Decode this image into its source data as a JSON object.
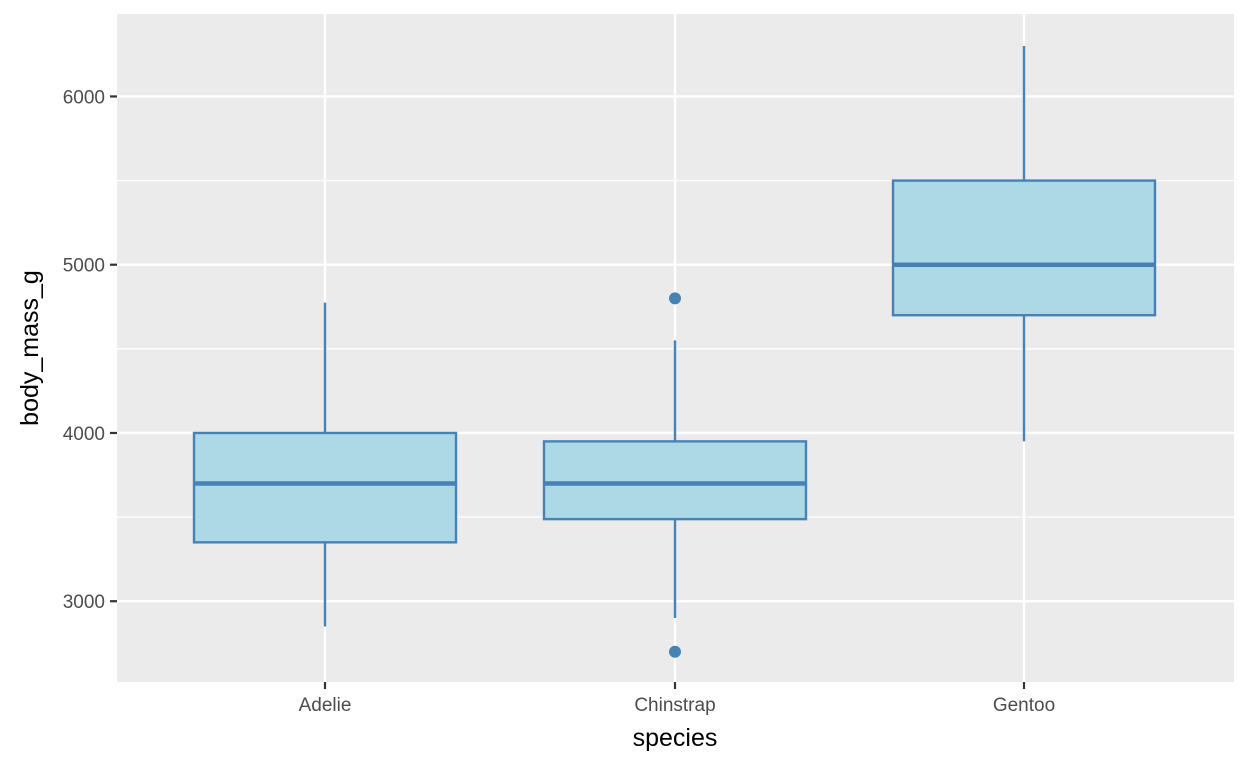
{
  "chart_data": {
    "type": "boxplot",
    "xlabel": "species",
    "ylabel": "body_mass_g",
    "categories": [
      "Adelie",
      "Chinstrap",
      "Gentoo"
    ],
    "ylim": [
      2520,
      6490
    ],
    "y_ticks": [
      3000,
      4000,
      5000,
      6000
    ],
    "y_minor_ticks": [
      3500,
      4500,
      5500
    ],
    "grid": true,
    "colors": {
      "panel_background": "#ebebeb",
      "grid": "#ffffff",
      "box_fill": "#add8e6",
      "box_outline": "#4682b4"
    },
    "boxes": [
      {
        "category": "Adelie",
        "whisker_low": 2850,
        "q1": 3350,
        "median": 3700,
        "q3": 4000,
        "whisker_high": 4775,
        "outliers": []
      },
      {
        "category": "Chinstrap",
        "whisker_low": 2900,
        "q1": 3488,
        "median": 3700,
        "q3": 3950,
        "whisker_high": 4550,
        "outliers": [
          4800,
          2700
        ]
      },
      {
        "category": "Gentoo",
        "whisker_low": 3950,
        "q1": 4700,
        "median": 5000,
        "q3": 5500,
        "whisker_high": 6300,
        "outliers": []
      }
    ]
  }
}
